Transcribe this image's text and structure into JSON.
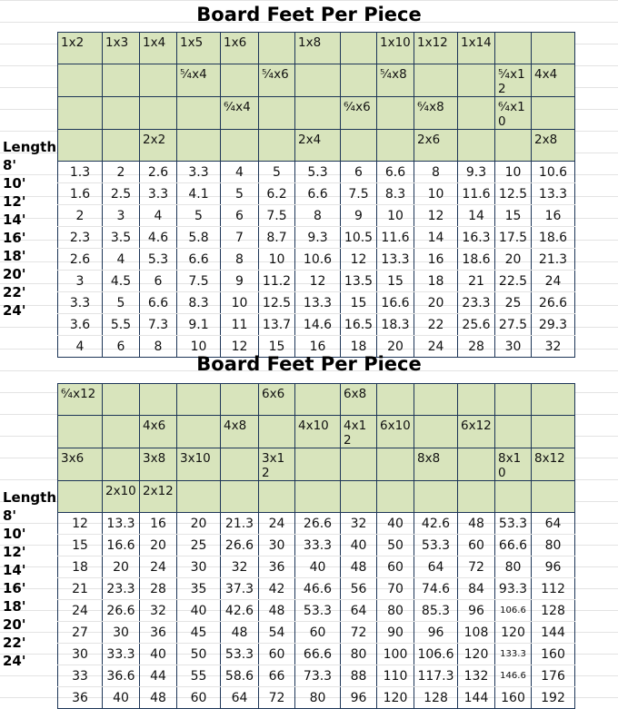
{
  "tables": [
    {
      "title": "Board Feet Per Piece",
      "length_label": "Length",
      "lengths": [
        "8'",
        "10'",
        "12'",
        "14'",
        "16'",
        "18'",
        "20'",
        "22'",
        "24'"
      ],
      "header_rows": [
        [
          "1x2",
          "1x3",
          "1x4",
          "1x5",
          "1x6",
          "",
          "1x8",
          "",
          "1x10",
          "1x12",
          "1x14",
          "",
          ""
        ],
        [
          "",
          "",
          "",
          "⁵⁄₄x4",
          "",
          "⁵⁄₄x6",
          "",
          "",
          "⁵⁄₄x8",
          "",
          "",
          "⁵⁄₄x12",
          "4x4"
        ],
        [
          "",
          "",
          "",
          "",
          "⁶⁄₄x4",
          "",
          "",
          "⁶⁄₄x6",
          "",
          "⁶⁄₄x8",
          "",
          "⁶⁄₄x10",
          ""
        ],
        [
          "",
          "",
          "2x2",
          "",
          "",
          "",
          "2x4",
          "",
          "",
          "2x6",
          "",
          "",
          "2x8"
        ]
      ],
      "rows": [
        [
          "1.3",
          "2",
          "2.6",
          "3.3",
          "4",
          "5",
          "5.3",
          "6",
          "6.6",
          "8",
          "9.3",
          "10",
          "10.6"
        ],
        [
          "1.6",
          "2.5",
          "3.3",
          "4.1",
          "5",
          "6.2",
          "6.6",
          "7.5",
          "8.3",
          "10",
          "11.6",
          "12.5",
          "13.3"
        ],
        [
          "2",
          "3",
          "4",
          "5",
          "6",
          "7.5",
          "8",
          "9",
          "10",
          "12",
          "14",
          "15",
          "16"
        ],
        [
          "2.3",
          "3.5",
          "4.6",
          "5.8",
          "7",
          "8.7",
          "9.3",
          "10.5",
          "11.6",
          "14",
          "16.3",
          "17.5",
          "18.6"
        ],
        [
          "2.6",
          "4",
          "5.3",
          "6.6",
          "8",
          "10",
          "10.6",
          "12",
          "13.3",
          "16",
          "18.6",
          "20",
          "21.3"
        ],
        [
          "3",
          "4.5",
          "6",
          "7.5",
          "9",
          "11.2",
          "12",
          "13.5",
          "15",
          "18",
          "21",
          "22.5",
          "24"
        ],
        [
          "3.3",
          "5",
          "6.6",
          "8.3",
          "10",
          "12.5",
          "13.3",
          "15",
          "16.6",
          "20",
          "23.3",
          "25",
          "26.6"
        ],
        [
          "3.6",
          "5.5",
          "7.3",
          "9.1",
          "11",
          "13.7",
          "14.6",
          "16.5",
          "18.3",
          "22",
          "25.6",
          "27.5",
          "29.3"
        ],
        [
          "4",
          "6",
          "8",
          "10",
          "12",
          "15",
          "16",
          "18",
          "20",
          "24",
          "28",
          "30",
          "32"
        ]
      ]
    },
    {
      "title": "Board Feet Per Piece",
      "length_label": "Length",
      "lengths": [
        "8'",
        "10'",
        "12'",
        "14'",
        "16'",
        "18'",
        "20'",
        "22'",
        "24'"
      ],
      "header_rows": [
        [
          "⁶⁄₄x12",
          "",
          "",
          "",
          "",
          "6x6",
          "",
          "6x8",
          "",
          "",
          "",
          "",
          ""
        ],
        [
          "",
          "",
          "4x6",
          "",
          "4x8",
          "",
          "4x10",
          "4x12",
          "6x10",
          "",
          "6x12",
          "",
          ""
        ],
        [
          "3x6",
          "",
          "3x8",
          "3x10",
          "",
          "3x12",
          "",
          "",
          "",
          "8x8",
          "",
          "8x10",
          "8x12"
        ],
        [
          "",
          "2x10",
          "2x12",
          "",
          "",
          "",
          "",
          "",
          "",
          "",
          "",
          "",
          ""
        ]
      ],
      "rows": [
        [
          "12",
          "13.3",
          "16",
          "20",
          "21.3",
          "24",
          "26.6",
          "32",
          "40",
          "42.6",
          "48",
          "53.3",
          "64"
        ],
        [
          "15",
          "16.6",
          "20",
          "25",
          "26.6",
          "30",
          "33.3",
          "40",
          "50",
          "53.3",
          "60",
          "66.6",
          "80"
        ],
        [
          "18",
          "20",
          "24",
          "30",
          "32",
          "36",
          "40",
          "48",
          "60",
          "64",
          "72",
          "80",
          "96"
        ],
        [
          "21",
          "23.3",
          "28",
          "35",
          "37.3",
          "42",
          "46.6",
          "56",
          "70",
          "74.6",
          "84",
          "93.3",
          "112"
        ],
        [
          "24",
          "26.6",
          "32",
          "40",
          "42.6",
          "48",
          "53.3",
          "64",
          "80",
          "85.3",
          "96",
          "106.6",
          "128"
        ],
        [
          "27",
          "30",
          "36",
          "45",
          "48",
          "54",
          "60",
          "72",
          "90",
          "96",
          "108",
          "120",
          "144"
        ],
        [
          "30",
          "33.3",
          "40",
          "50",
          "53.3",
          "60",
          "66.6",
          "80",
          "100",
          "106.6",
          "120",
          "133.3",
          "160"
        ],
        [
          "33",
          "36.6",
          "44",
          "55",
          "58.6",
          "66",
          "73.3",
          "88",
          "110",
          "117.3",
          "132",
          "146.6",
          "176"
        ],
        [
          "36",
          "40",
          "48",
          "60",
          "64",
          "72",
          "80",
          "96",
          "120",
          "128",
          "144",
          "160",
          "192"
        ]
      ]
    }
  ]
}
